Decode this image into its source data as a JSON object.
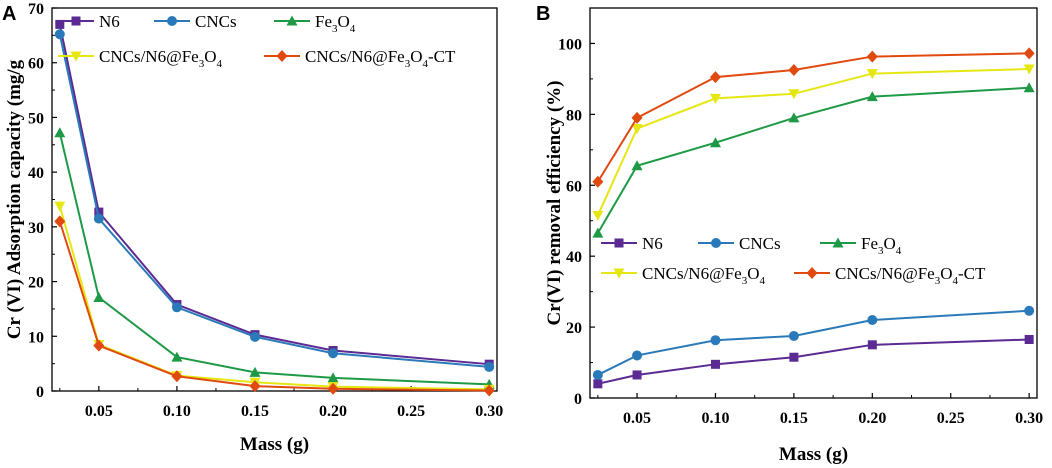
{
  "chart_data": [
    {
      "type": "line",
      "panel_label": "A",
      "xlabel": "Mass (g)",
      "ylabel": "Cr (VI) Adsorption capacity (mg/g",
      "xlim": [
        0.02,
        0.305
      ],
      "ylim": [
        0,
        70
      ],
      "xticks": [
        0.05,
        0.1,
        0.15,
        0.2,
        0.25,
        0.3
      ],
      "xtick_labels": [
        "0.05",
        "0.10",
        "0.15",
        "0.20",
        "0.25",
        "0.30"
      ],
      "yticks": [
        0,
        10,
        20,
        30,
        40,
        50,
        60,
        70
      ],
      "ytick_labels": [
        "0",
        "10",
        "20",
        "30",
        "40",
        "50",
        "60",
        "70"
      ],
      "grid": false,
      "legend_position": "top-right",
      "x": [
        0.025,
        0.05,
        0.1,
        0.15,
        0.2,
        0.3
      ],
      "series": [
        {
          "name": "N6",
          "label_main": "N6",
          "label_sub": [],
          "color": "#5b2a92",
          "marker": "square",
          "values": [
            67.0,
            32.7,
            15.8,
            10.3,
            7.4,
            4.9
          ]
        },
        {
          "name": "CNCs",
          "label_main": "CNCs",
          "label_sub": [],
          "color": "#2a7ab9",
          "marker": "circle",
          "values": [
            65.2,
            31.5,
            15.3,
            9.9,
            6.9,
            4.4
          ]
        },
        {
          "name": "Fe3O4",
          "label_main": "Fe",
          "label_sub": [
            "3",
            "O",
            "4"
          ],
          "color": "#1e9a46",
          "marker": "triangle",
          "values": [
            47.2,
            17.1,
            6.2,
            3.4,
            2.4,
            1.2
          ]
        },
        {
          "name": "CNCs/N6@Fe3O4",
          "label_main": "CNCs/N6@Fe",
          "label_sub": [
            "3",
            "O",
            "4"
          ],
          "color": "#e6e612",
          "marker": "triangle-down",
          "values": [
            33.8,
            8.5,
            2.8,
            1.6,
            0.8,
            0.3
          ]
        },
        {
          "name": "CNCs/N6@Fe3O4-CT",
          "label_main": "CNCs/N6@Fe",
          "label_sub": [
            "3",
            "O",
            "4",
            "-CT"
          ],
          "color": "#e04a10",
          "marker": "diamond",
          "values": [
            31.0,
            8.3,
            2.7,
            0.9,
            0.4,
            0.1
          ]
        }
      ]
    },
    {
      "type": "line",
      "panel_label": "B",
      "xlabel": "Mass (g)",
      "ylabel": "Cr(VI) removal efficiency (%)",
      "xlim": [
        0.02,
        0.305
      ],
      "ylim": [
        0,
        110
      ],
      "xticks": [
        0.05,
        0.1,
        0.15,
        0.2,
        0.25,
        0.3
      ],
      "xtick_labels": [
        "0.05",
        "0.10",
        "0.15",
        "0.20",
        "0.25",
        "0.30"
      ],
      "yticks": [
        0,
        20,
        40,
        60,
        80,
        100
      ],
      "ytick_labels": [
        "0",
        "20",
        "40",
        "60",
        "80",
        "100"
      ],
      "grid": false,
      "legend_position": "middle-right",
      "x": [
        0.025,
        0.05,
        0.1,
        0.15,
        0.2,
        0.3
      ],
      "series": [
        {
          "name": "N6",
          "label_main": "N6",
          "label_sub": [],
          "color": "#5b2a92",
          "marker": "square",
          "values": [
            4.0,
            6.5,
            9.5,
            11.5,
            15.0,
            16.5
          ]
        },
        {
          "name": "CNCs",
          "label_main": "CNCs",
          "label_sub": [],
          "color": "#2a7ab9",
          "marker": "circle",
          "values": [
            6.5,
            12.0,
            16.3,
            17.5,
            22.0,
            24.6
          ]
        },
        {
          "name": "Fe3O4",
          "label_main": "Fe",
          "label_sub": [
            "3",
            "O",
            "4"
          ],
          "color": "#1e9a46",
          "marker": "triangle",
          "values": [
            46.5,
            65.5,
            72.0,
            79.0,
            85.0,
            87.5
          ]
        },
        {
          "name": "CNCs/N6@Fe3O4",
          "label_main": "CNCs/N6@Fe",
          "label_sub": [
            "3",
            "O",
            "4"
          ],
          "color": "#e6e612",
          "marker": "triangle-down",
          "values": [
            51.5,
            76.0,
            84.5,
            85.8,
            91.5,
            92.8
          ]
        },
        {
          "name": "CNCs/N6@Fe3O4-CT",
          "label_main": "CNCs/N6@Fe",
          "label_sub": [
            "3",
            "O",
            "4",
            "-CT"
          ],
          "color": "#e04a10",
          "marker": "diamond",
          "values": [
            61.0,
            79.0,
            90.5,
            92.5,
            96.3,
            97.2
          ]
        }
      ]
    }
  ]
}
